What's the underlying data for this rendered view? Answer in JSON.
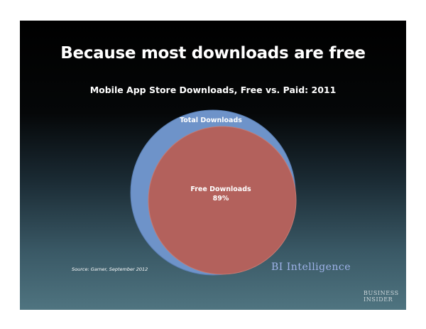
{
  "slide": {
    "headline": "Because most downloads are free",
    "source": "Source: Garner, September 2012",
    "brand": "BI Intelligence",
    "logo_line1": "Business",
    "logo_line2": "Insider"
  },
  "chart_data": {
    "type": "venn",
    "title": "Mobile App Store Downloads, Free vs. Paid: 2011",
    "sets": [
      {
        "name": "Total Downloads",
        "value": 100,
        "label": "Total Downloads",
        "color": "#6e93c9"
      },
      {
        "name": "Free Downloads",
        "value": 89,
        "label": "Free Downloads",
        "value_label": "89%",
        "color": "#b3615c"
      }
    ]
  }
}
